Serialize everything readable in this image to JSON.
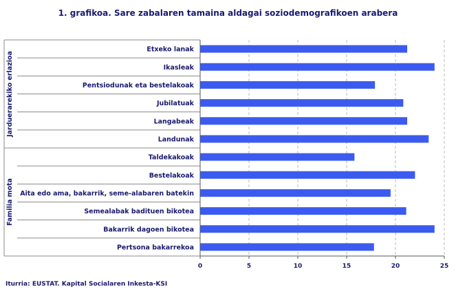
{
  "title": "1. grafikoa. Sare zabalaren tamaina aldagai soziodemografikoen arabera",
  "source": "Iturria: EUSTAT. Kapital Socialaren Inkesta-KSI",
  "colors": {
    "bar": "#3b5bf0",
    "text": "#1a1a6e",
    "grid": "#b8b8b8"
  },
  "chart_data": {
    "type": "bar",
    "orientation": "horizontal",
    "xlim": [
      0,
      25
    ],
    "xticks": [
      0,
      5,
      10,
      15,
      20,
      25
    ],
    "groups": [
      {
        "name": "Jarduerarekiko erlazioa",
        "categories": [
          "Etxeko lanak",
          "Ikasleak",
          "Pentsiodunak eta bestelakoak",
          "Jubilatuak",
          "Langabeak",
          "Landunak"
        ]
      },
      {
        "name": "Familia mota",
        "categories": [
          "Taldekakoak",
          "Bestelakoak",
          "Aita edo ama, bakarrik, seme-alabaren batekin",
          "Semealabak badituen bikotea",
          "Bakarrik dagoen bikotea",
          "Pertsona bakarrekoa"
        ]
      }
    ],
    "categories": [
      "Etxeko lanak",
      "Ikasleak",
      "Pentsiodunak eta bestelakoak",
      "Jubilatuak",
      "Langabeak",
      "Landunak",
      "Taldekakoak",
      "Bestelakoak",
      "Aita edo ama, bakarrik, seme-alabaren batekin",
      "Semealabak badituen bikotea",
      "Bakarrik dagoen bikotea",
      "Pertsona bakarrekoa"
    ],
    "values": [
      21.2,
      24.0,
      17.9,
      20.8,
      21.2,
      23.4,
      15.8,
      22.0,
      19.5,
      21.1,
      24.0,
      17.8
    ],
    "grid": true
  }
}
